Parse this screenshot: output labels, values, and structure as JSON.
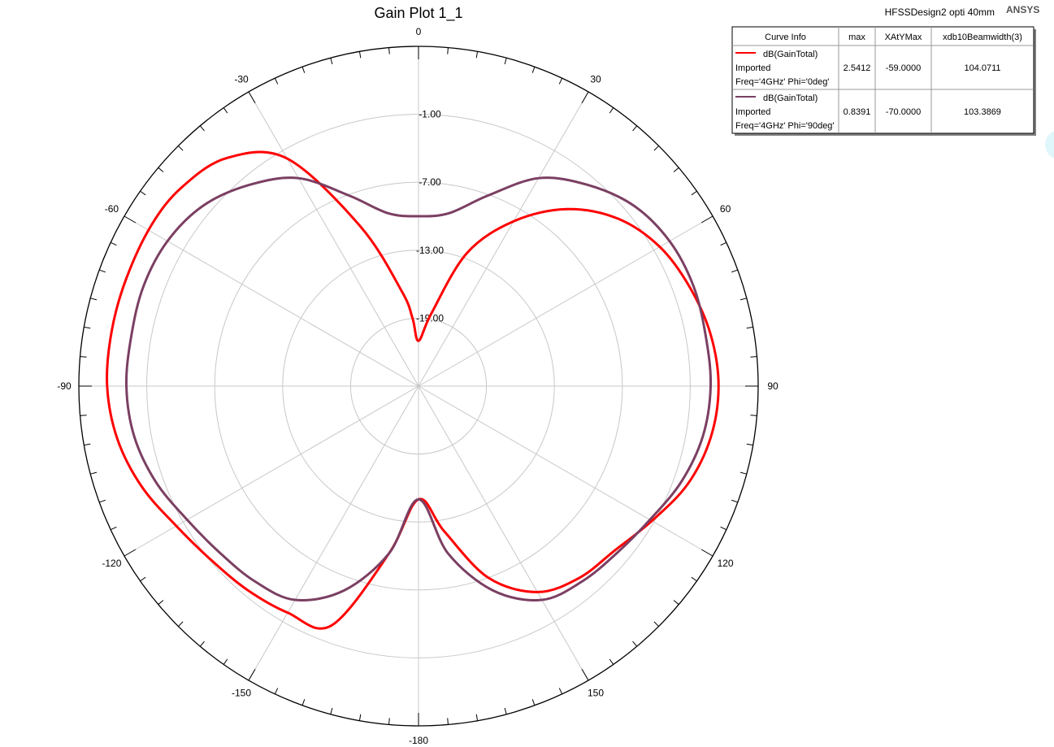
{
  "header": {
    "design_name": "HFSSDesign2 opti 40mm",
    "brand": "ANSYS"
  },
  "chart_data": {
    "type": "polar-line",
    "title": "Gain Plot 1_1",
    "angle_tick_labels": [
      "0",
      "30",
      "60",
      "90",
      "120",
      "150",
      "-180",
      "-150",
      "-120",
      "-90",
      "-60",
      "-30"
    ],
    "radial_axis": {
      "min": -25,
      "max": 5,
      "tick_values": [
        -1.0,
        -7.0,
        -13.0,
        -19.0
      ],
      "tick_labels": [
        "-1.00",
        "-7.00",
        "-13.00",
        "-19.00"
      ]
    },
    "grid": true,
    "legend_position": "top-right",
    "legend": {
      "columns": [
        "Curve Info",
        "max",
        "XAtYMax",
        "xdb10Beamwidth(3)"
      ],
      "rows": [
        {
          "lines": [
            "dB(GainTotal)",
            "Imported",
            "Freq='4GHz' Phi='0deg'"
          ],
          "max": "2.5412",
          "xatymax": "-59.0000",
          "beamwidth": "104.0711",
          "color": "#ff0000"
        },
        {
          "lines": [
            "dB(GainTotal)",
            "Imported",
            "Freq='4GHz' Phi='90deg'"
          ],
          "max": "0.8391",
          "xatymax": "-70.0000",
          "beamwidth": "103.3869",
          "color": "#7b3f62"
        }
      ]
    },
    "series": [
      {
        "color": "#ff0000",
        "theta": [
          -180,
          -170,
          -160,
          -150,
          -140,
          -130,
          -120,
          -110,
          -100,
          -90,
          -80,
          -70,
          -59,
          -50,
          -40,
          -30,
          -20,
          -10,
          -5,
          0,
          10,
          20,
          30,
          40,
          50,
          60,
          70,
          80,
          90,
          100,
          110,
          120,
          130,
          140,
          150,
          160,
          170
        ],
        "gain": [
          -15.0,
          -10.0,
          -2.5,
          -1.9,
          -1.5,
          -1.1,
          -0.3,
          1.0,
          2.0,
          2.5,
          2.53,
          2.5,
          2.54,
          2.3,
          1.3,
          -1.8,
          -10.0,
          -16.5,
          -19.0,
          -21.0,
          -18.5,
          -12.5,
          -8.2,
          -4.6,
          -2.0,
          -0.4,
          0.5,
          1.2,
          1.5,
          1.2,
          0.3,
          -1.2,
          -2.4,
          -2.9,
          -4.0,
          -7.0,
          -12.0
        ]
      },
      {
        "color": "#7b3f62",
        "theta": [
          -180,
          -170,
          -160,
          -150,
          -140,
          -130,
          -120,
          -110,
          -100,
          -90,
          -80,
          -70,
          -60,
          -50,
          -40,
          -30,
          -20,
          -10,
          0,
          10,
          20,
          30,
          40,
          50,
          60,
          70,
          80,
          90,
          100,
          110,
          120,
          130,
          140,
          150,
          160,
          170
        ],
        "gain": [
          -15.0,
          -10.0,
          -5.8,
          -3.2,
          -2.5,
          -2.1,
          -1.4,
          -0.3,
          0.5,
          0.8,
          0.75,
          0.84,
          0.6,
          -0.2,
          -1.8,
          -3.8,
          -7.1,
          -9.5,
          -10.0,
          -9.5,
          -7.1,
          -3.8,
          -1.8,
          -0.2,
          0.6,
          0.84,
          0.75,
          0.8,
          0.5,
          -0.3,
          -1.4,
          -2.1,
          -2.5,
          -3.2,
          -5.8,
          -10.0
        ]
      }
    ]
  }
}
